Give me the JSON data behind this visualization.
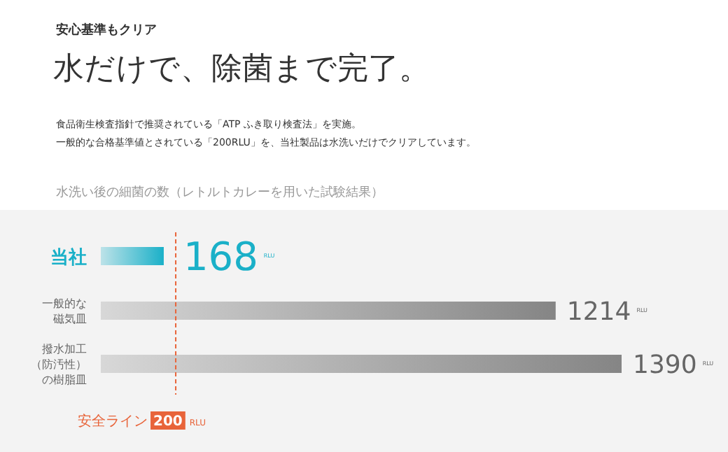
{
  "chart_data": {
    "type": "bar",
    "orientation": "horizontal",
    "subtitle": "安心基準もクリア",
    "title": "水だけで、除菌まで完了。",
    "annotations": [
      "食品衛生検査指針で推奨されている「ATP ふき取り検査法」を実施。",
      "一般的な合格基準値とされている「200RLU」を、当社製品は水洗いだけでクリアしています。",
      "水洗い後の細菌の数（レトルトカレーを用いた試験結果）",
      "RLU",
      "RLU",
      "RLU"
    ],
    "categories": [
      "当社",
      "一般的な磁気皿",
      "撥水加工（防汚性）の樹脂皿"
    ],
    "values": [
      168,
      1214,
      1390
    ],
    "colors": [
      "#1ab0c8",
      "#858585",
      "#858585"
    ],
    "data_labels": true,
    "ref_lines": [
      {
        "axis": "x",
        "value": 200,
        "label": "安全ライン 200 RLU",
        "color": "#e8643a",
        "line_style": "dashed"
      }
    ]
  }
}
